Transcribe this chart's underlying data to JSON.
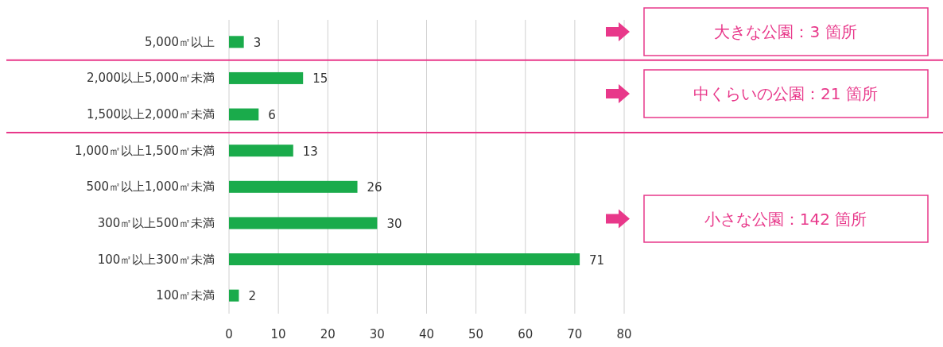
{
  "chart_data": {
    "type": "bar",
    "orientation": "horizontal",
    "categories": [
      "5,000㎡以上",
      "2,000以上5,000㎡未満",
      "1,500以上2,000㎡未満",
      "1,000㎡以上1,500㎡未満",
      "500㎡以上1,000㎡未満",
      "300㎡以上500㎡未満",
      "100㎡以上300㎡未満",
      "100㎡未満"
    ],
    "values": [
      3,
      15,
      6,
      13,
      26,
      30,
      71,
      2
    ],
    "color": "#1aab4b",
    "xlim": [
      0,
      80
    ],
    "xticks": [
      0,
      10,
      20,
      30,
      40,
      50,
      60,
      70,
      80
    ],
    "grid": "x",
    "data_labels": true,
    "annotations": [
      "大きな公園：3 箇所",
      "中くらいの公園：21 箇所",
      "小さな公園：142 箇所"
    ]
  }
}
